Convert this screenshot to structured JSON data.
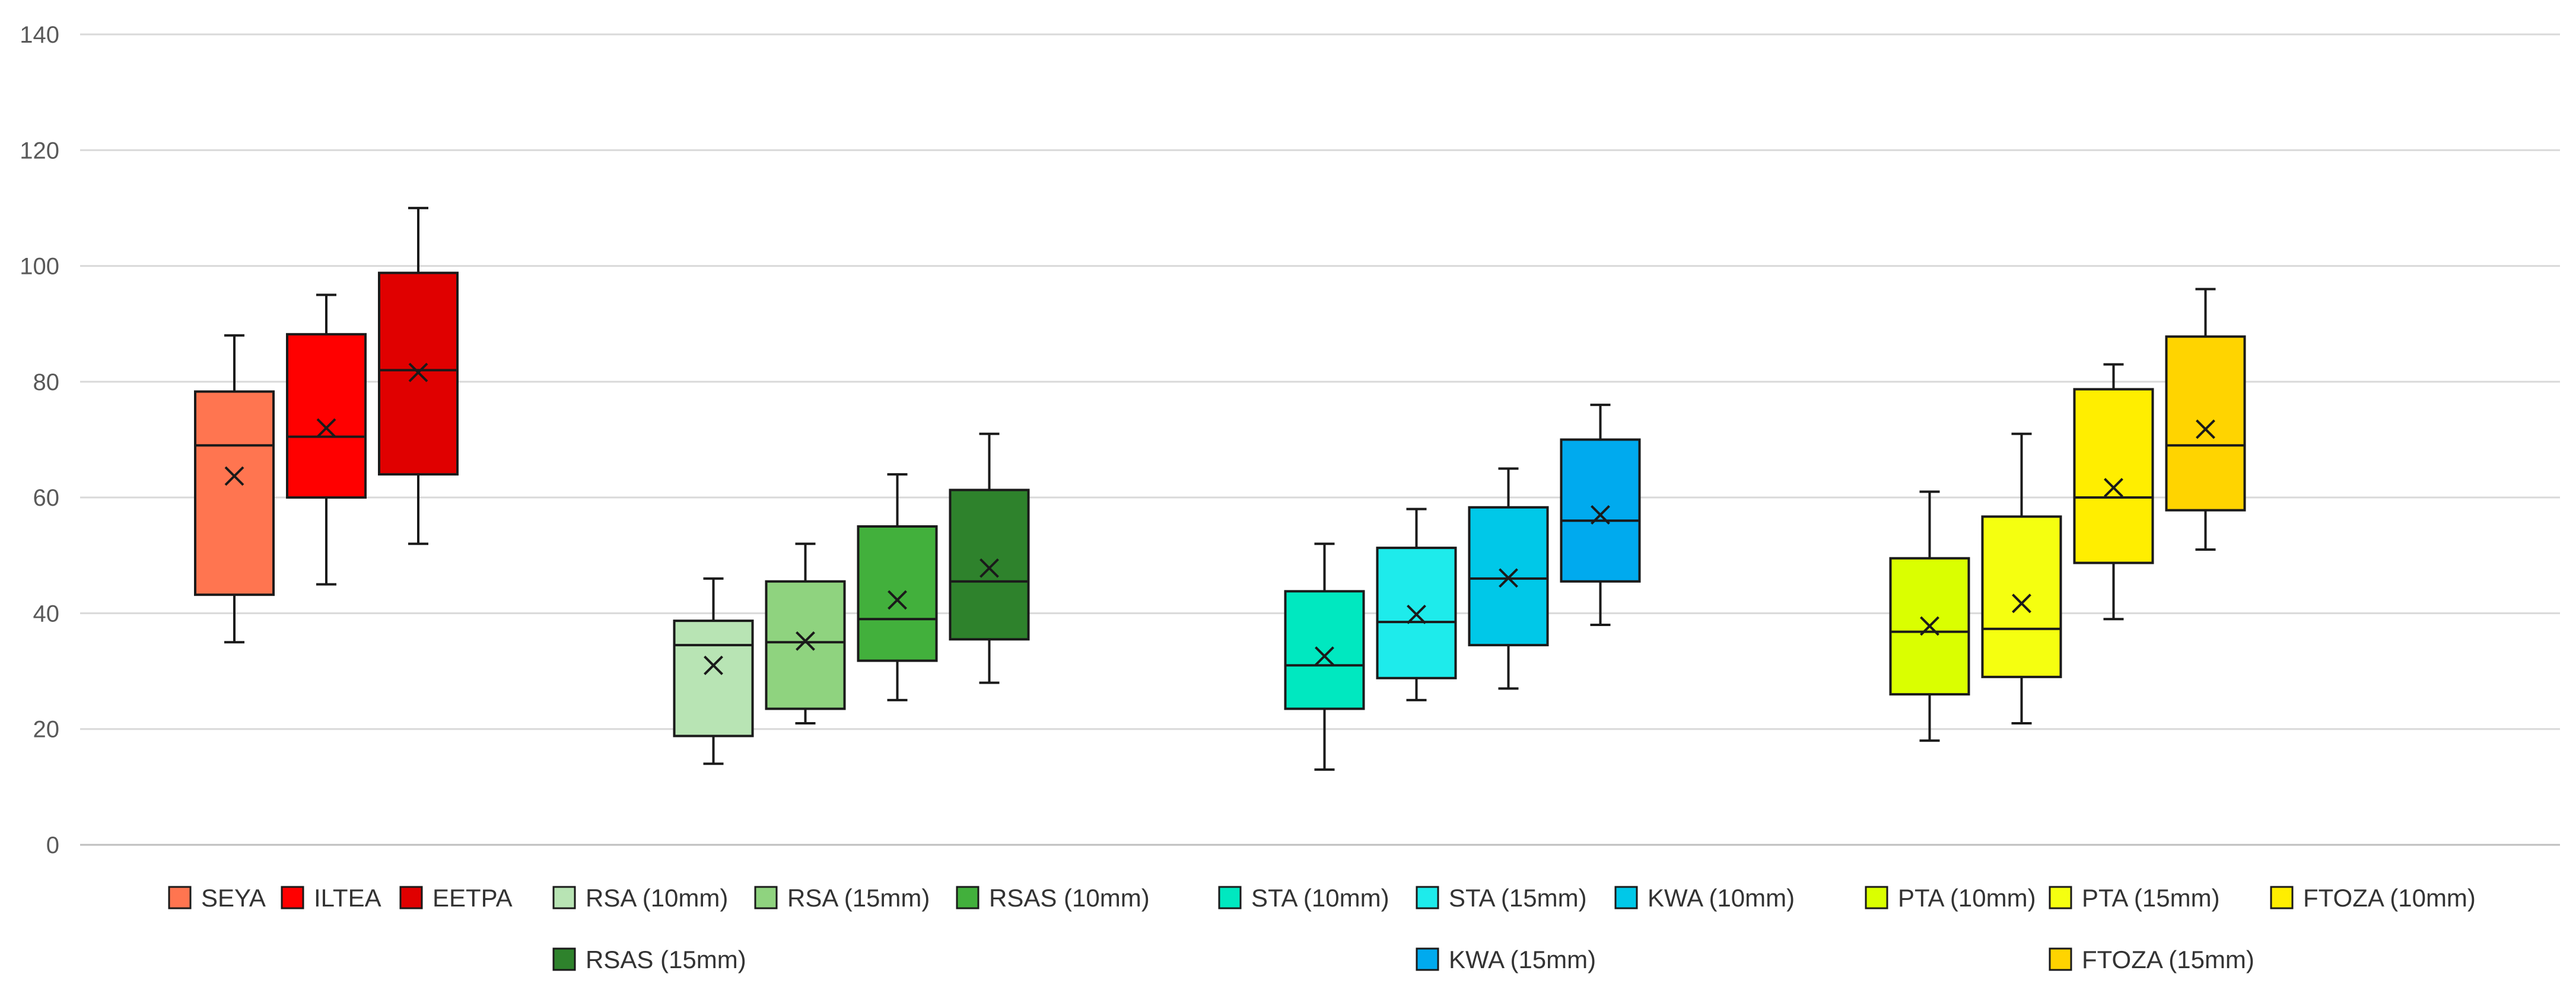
{
  "chart_data": {
    "type": "boxplot",
    "title": "",
    "xlabel": "",
    "ylabel": "",
    "ylim": [
      0,
      140
    ],
    "yticks": [
      "0",
      "20",
      "40",
      "60",
      "80",
      "100",
      "120",
      "140"
    ],
    "grid": true,
    "legend_position": "bottom",
    "groups": [
      {
        "series": [
          {
            "name": "SEYA",
            "color": "#FF7550",
            "min": 35,
            "q1": 43.2,
            "median": 69,
            "q3": 78.3,
            "max": 88,
            "mean": 63.7
          },
          {
            "name": "ILTEA",
            "color": "#FF0000",
            "min": 45,
            "q1": 60,
            "median": 70.5,
            "q3": 88.2,
            "max": 95,
            "mean": 72
          },
          {
            "name": "EETPA",
            "color": "#E00000",
            "min": 52,
            "q1": 64,
            "median": 82,
            "q3": 98.8,
            "max": 110,
            "mean": 81.6
          }
        ]
      },
      {
        "series": [
          {
            "name": "RSA (10mm)",
            "color": "#B8E4B4",
            "min": 14,
            "q1": 18.8,
            "median": 34.5,
            "q3": 38.7,
            "max": 46,
            "mean": 31
          },
          {
            "name": "RSA (15mm)",
            "color": "#8FD37F",
            "min": 21,
            "q1": 23.5,
            "median": 35,
            "q3": 45.5,
            "max": 52,
            "mean": 35.2
          },
          {
            "name": "RSAS (10mm)",
            "color": "#42B03C",
            "min": 25,
            "q1": 31.8,
            "median": 39,
            "q3": 55,
            "max": 64,
            "mean": 42.3
          },
          {
            "name": "RSAS (15mm)",
            "color": "#2E822C",
            "min": 28,
            "q1": 35.5,
            "median": 45.5,
            "q3": 61.3,
            "max": 71,
            "mean": 47.8
          }
        ]
      },
      {
        "series": [
          {
            "name": "STA (10mm)",
            "color": "#00E8C0",
            "min": 13,
            "q1": 23.5,
            "median": 31,
            "q3": 43.8,
            "max": 52,
            "mean": 32.6
          },
          {
            "name": "STA (15mm)",
            "color": "#1EEBEB",
            "min": 25,
            "q1": 28.8,
            "median": 38.5,
            "q3": 51.3,
            "max": 58,
            "mean": 39.8
          },
          {
            "name": "KWA (10mm)",
            "color": "#00C8E8",
            "min": 27,
            "q1": 34.5,
            "median": 46,
            "q3": 58.3,
            "max": 65,
            "mean": 46.1
          },
          {
            "name": "KWA (15mm)",
            "color": "#00AAEE",
            "min": 38,
            "q1": 45.5,
            "median": 56,
            "q3": 70,
            "max": 76,
            "mean": 57
          }
        ]
      },
      {
        "series": [
          {
            "name": "PTA (10mm)",
            "color": "#DAFF00",
            "min": 18,
            "q1": 26,
            "median": 36.8,
            "q3": 49.5,
            "max": 61,
            "mean": 37.8
          },
          {
            "name": "PTA (15mm)",
            "color": "#F5FF10",
            "min": 21,
            "q1": 29,
            "median": 37.3,
            "q3": 56.7,
            "max": 71,
            "mean": 41.7
          },
          {
            "name": "FTOZA (10mm)",
            "color": "#FFEE00",
            "min": 39,
            "q1": 48.7,
            "median": 60,
            "q3": 78.7,
            "max": 83,
            "mean": 61.7
          },
          {
            "name": "FTOZA (15mm)",
            "color": "#FFD400",
            "min": 51,
            "q1": 57.8,
            "median": 69,
            "q3": 87.8,
            "max": 96,
            "mean": 71.8
          }
        ]
      }
    ],
    "legend": [
      [
        "SEYA",
        "ILTEA",
        "EETPA"
      ],
      [
        "RSA (10mm)",
        "RSA (15mm)",
        "RSAS (10mm)",
        "RSAS (15mm)"
      ],
      [
        "STA (10mm)",
        "STA (15mm)",
        "KWA (10mm)",
        "KWA (15mm)"
      ],
      [
        "PTA (10mm)",
        "PTA (15mm)",
        "FTOZA (10mm)",
        "FTOZA (15mm)"
      ]
    ]
  }
}
